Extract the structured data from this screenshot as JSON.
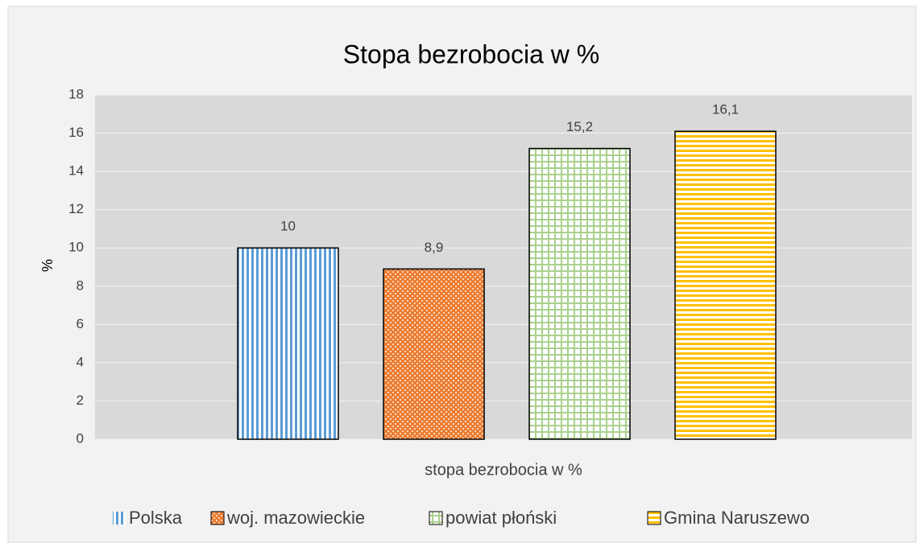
{
  "chart_data": {
    "type": "bar",
    "title": "Stopa bezrobocia w %",
    "ylabel": "%",
    "categories": [
      "stopa bezrobocia w %"
    ],
    "series": [
      {
        "name": "Polska",
        "color": "#5b9bd5",
        "values": [
          10
        ],
        "value_labels": [
          "10"
        ]
      },
      {
        "name": "woj. mazowieckie",
        "color": "#ed7d31",
        "values": [
          8.9
        ],
        "value_labels": [
          "8,9"
        ]
      },
      {
        "name": "powiat płoński",
        "color": "#a9d18e",
        "values": [
          15.2
        ],
        "value_labels": [
          "15,2"
        ]
      },
      {
        "name": "Gmina Naruszewo",
        "color": "#ffc000",
        "values": [
          16.1
        ],
        "value_labels": [
          "16,1"
        ]
      }
    ],
    "ylim": [
      0,
      18
    ],
    "yticks": [
      0,
      2,
      4,
      6,
      8,
      10,
      12,
      14,
      16,
      18
    ],
    "grid": true,
    "legend": "bottom"
  }
}
